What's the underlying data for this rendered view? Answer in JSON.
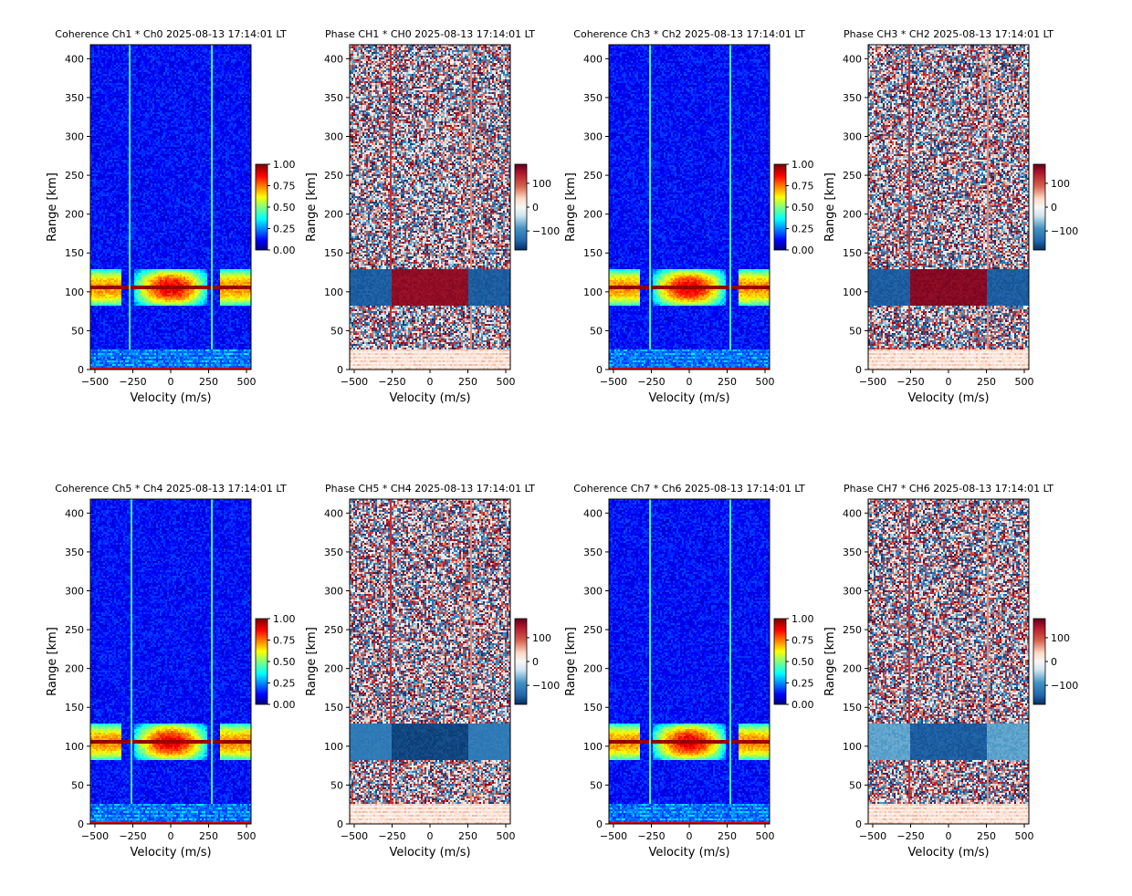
{
  "figure": {
    "timestamp": "2025-08-13 17:14:01 LT"
  },
  "chart_data": [
    {
      "type": "heatmap",
      "kind": "coherence",
      "title": "Coherence Ch1 * Ch0 2025-08-13 17:14:01 LT",
      "xlabel": "Velocity (m/s)",
      "ylabel": "Range [km]",
      "xlim": [
        -530,
        530
      ],
      "ylim": [
        0,
        418
      ],
      "xticks": [
        -500,
        -250,
        0,
        250,
        500
      ],
      "yticks": [
        0,
        50,
        100,
        150,
        200,
        250,
        300,
        350,
        400
      ],
      "colormap": "jet",
      "clim": [
        0,
        1
      ],
      "colorbar_ticks": [
        "0.00",
        "0.25",
        "0.50",
        "0.75",
        "1.00"
      ],
      "echo_layer_km": [
        82,
        128
      ],
      "echo_peak_km": [
        103,
        108
      ],
      "interference_lines_velocity": [
        -270,
        270
      ],
      "hot_velocity": 0,
      "background_level": 0.12,
      "echo_level": 0.85,
      "low_range_rows_km": [
        0,
        25
      ]
    },
    {
      "type": "heatmap",
      "kind": "phase",
      "title": "Phase CH1 * CH0 2025-08-13 17:14:01 LT",
      "xlabel": "Velocity (m/s)",
      "ylabel": "Range [km]",
      "xlim": [
        -530,
        530
      ],
      "ylim": [
        0,
        418
      ],
      "xticks": [
        -500,
        -250,
        0,
        250,
        500
      ],
      "yticks": [
        0,
        50,
        100,
        150,
        200,
        250,
        300,
        350,
        400
      ],
      "colormap": "RdBu_r",
      "clim": [
        -180,
        180
      ],
      "colorbar_ticks": [
        "−100",
        "0",
        "100"
      ],
      "echo_layer_km": [
        82,
        128
      ],
      "echo_center_phase": 160,
      "echo_wing_phase": -150,
      "interference_lines_velocity": [
        -260,
        270
      ],
      "low_range_rows_km": [
        0,
        25
      ]
    },
    {
      "type": "heatmap",
      "kind": "coherence",
      "title": "Coherence Ch3 * Ch2 2025-08-13 17:14:01 LT",
      "xlabel": "Velocity (m/s)",
      "ylabel": "Range [km]",
      "xlim": [
        -530,
        530
      ],
      "ylim": [
        0,
        418
      ],
      "xticks": [
        -500,
        -250,
        0,
        250,
        500
      ],
      "yticks": [
        0,
        50,
        100,
        150,
        200,
        250,
        300,
        350,
        400
      ],
      "colormap": "jet",
      "clim": [
        0,
        1
      ],
      "colorbar_ticks": [
        "0.00",
        "0.25",
        "0.50",
        "0.75",
        "1.00"
      ],
      "echo_layer_km": [
        82,
        128
      ],
      "echo_peak_km": [
        103,
        108
      ],
      "interference_lines_velocity": [
        -260,
        270
      ],
      "hot_velocity": 0,
      "background_level": 0.12,
      "echo_level": 0.85,
      "low_range_rows_km": [
        0,
        25
      ]
    },
    {
      "type": "heatmap",
      "kind": "phase",
      "title": "Phase CH3 * CH2 2025-08-13 17:14:01 LT",
      "xlabel": "Velocity (m/s)",
      "ylabel": "Range [km]",
      "xlim": [
        -530,
        530
      ],
      "ylim": [
        0,
        418
      ],
      "xticks": [
        -500,
        -250,
        0,
        250,
        500
      ],
      "yticks": [
        0,
        50,
        100,
        150,
        200,
        250,
        300,
        350,
        400
      ],
      "colormap": "RdBu_r",
      "clim": [
        -180,
        180
      ],
      "colorbar_ticks": [
        "−100",
        "0",
        "100"
      ],
      "echo_layer_km": [
        82,
        128
      ],
      "echo_center_phase": 165,
      "echo_wing_phase": -150,
      "interference_lines_velocity": [
        -260,
        260
      ],
      "low_range_rows_km": [
        0,
        25
      ]
    },
    {
      "type": "heatmap",
      "kind": "coherence",
      "title": "Coherence Ch5 * Ch4 2025-08-13 17:14:01 LT",
      "xlabel": "Velocity (m/s)",
      "ylabel": "Range [km]",
      "xlim": [
        -530,
        530
      ],
      "ylim": [
        0,
        418
      ],
      "xticks": [
        -500,
        -250,
        0,
        250,
        500
      ],
      "yticks": [
        0,
        50,
        100,
        150,
        200,
        250,
        300,
        350,
        400
      ],
      "colormap": "jet",
      "clim": [
        0,
        1
      ],
      "colorbar_ticks": [
        "0.00",
        "0.25",
        "0.50",
        "0.75",
        "1.00"
      ],
      "echo_layer_km": [
        82,
        128
      ],
      "echo_peak_km": [
        103,
        108
      ],
      "interference_lines_velocity": [
        -260,
        270
      ],
      "hot_velocity": 0,
      "background_level": 0.12,
      "echo_level": 0.85,
      "low_range_rows_km": [
        0,
        25
      ]
    },
    {
      "type": "heatmap",
      "kind": "phase",
      "title": "Phase CH5 * CH4 2025-08-13 17:14:01 LT",
      "xlabel": "Velocity (m/s)",
      "ylabel": "Range [km]",
      "xlim": [
        -530,
        530
      ],
      "ylim": [
        0,
        418
      ],
      "xticks": [
        -500,
        -250,
        0,
        250,
        500
      ],
      "yticks": [
        0,
        50,
        100,
        150,
        200,
        250,
        300,
        350,
        400
      ],
      "colormap": "RdBu_r",
      "clim": [
        -180,
        180
      ],
      "colorbar_ticks": [
        "−100",
        "0",
        "100"
      ],
      "echo_layer_km": [
        82,
        128
      ],
      "echo_center_phase": -165,
      "echo_wing_phase": -120,
      "interference_lines_velocity": [
        -260,
        270
      ],
      "low_range_rows_km": [
        0,
        25
      ]
    },
    {
      "type": "heatmap",
      "kind": "coherence",
      "title": "Coherence Ch7 * Ch6 2025-08-13 17:14:01 LT",
      "xlabel": "Velocity (m/s)",
      "ylabel": "Range [km]",
      "xlim": [
        -530,
        530
      ],
      "ylim": [
        0,
        418
      ],
      "xticks": [
        -500,
        -250,
        0,
        250,
        500
      ],
      "yticks": [
        0,
        50,
        100,
        150,
        200,
        250,
        300,
        350,
        400
      ],
      "colormap": "jet",
      "clim": [
        0,
        1
      ],
      "colorbar_ticks": [
        "0.00",
        "0.25",
        "0.50",
        "0.75",
        "1.00"
      ],
      "echo_layer_km": [
        82,
        128
      ],
      "echo_peak_km": [
        103,
        108
      ],
      "interference_lines_velocity": [
        -260,
        270
      ],
      "hot_velocity": 0,
      "background_level": 0.12,
      "echo_level": 0.85,
      "low_range_rows_km": [
        0,
        25
      ]
    },
    {
      "type": "heatmap",
      "kind": "phase",
      "title": "Phase CH7 * CH6 2025-08-13 17:14:01 LT",
      "xlabel": "Velocity (m/s)",
      "ylabel": "Range [km]",
      "xlim": [
        -530,
        530
      ],
      "ylim": [
        0,
        418
      ],
      "xticks": [
        -500,
        -250,
        0,
        250,
        500
      ],
      "yticks": [
        0,
        50,
        100,
        150,
        200,
        250,
        300,
        350,
        400
      ],
      "colormap": "RdBu_r",
      "clim": [
        -180,
        180
      ],
      "colorbar_ticks": [
        "−100",
        "0",
        "100"
      ],
      "echo_layer_km": [
        82,
        128
      ],
      "echo_center_phase": -150,
      "echo_wing_phase": -80,
      "interference_lines_velocity": [
        -260,
        260
      ],
      "low_range_rows_km": [
        0,
        25
      ]
    }
  ]
}
